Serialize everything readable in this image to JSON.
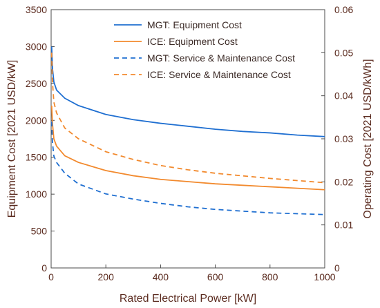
{
  "chart_data": {
    "type": "line",
    "xlabel": "Rated Electrical Power [kW]",
    "ylabel": "Equipment Cost [2021 USD/kW]",
    "y2label": "Operating Cost [2021 USD/kWh]",
    "xlim": [
      0,
      1000
    ],
    "ylim": [
      0,
      3500
    ],
    "y2lim": [
      0,
      0.06
    ],
    "x_ticks": [
      "0",
      "200",
      "400",
      "600",
      "800",
      "1000"
    ],
    "y_ticks": [
      "0",
      "500",
      "1000",
      "1500",
      "2000",
      "2500",
      "3000",
      "3500"
    ],
    "y2_ticks": [
      "0",
      "0.01",
      "0.02",
      "0.03",
      "0.04",
      "0.05",
      "0.06"
    ],
    "grid": false,
    "legend_position": "top-center",
    "x": [
      2,
      5,
      10,
      20,
      50,
      100,
      200,
      300,
      400,
      500,
      600,
      700,
      800,
      900,
      1000
    ],
    "series": [
      {
        "name": "MGT: Equipment Cost",
        "axis": "left",
        "style": "solid",
        "color": "#1f6fd1",
        "values": [
          3000,
          2700,
          2520,
          2410,
          2300,
          2200,
          2080,
          2010,
          1960,
          1920,
          1880,
          1850,
          1830,
          1800,
          1780
        ]
      },
      {
        "name": "ICE: Equipment Cost",
        "axis": "left",
        "style": "solid",
        "color": "#f28a2e",
        "values": [
          2200,
          1950,
          1750,
          1650,
          1520,
          1430,
          1320,
          1250,
          1200,
          1170,
          1140,
          1120,
          1100,
          1080,
          1060
        ]
      },
      {
        "name": "MGT: Service & Maintenance Cost",
        "axis": "right",
        "style": "dashed",
        "color": "#1f6fd1",
        "values": [
          0.034,
          0.029,
          0.026,
          0.0245,
          0.022,
          0.0195,
          0.0172,
          0.016,
          0.015,
          0.0142,
          0.0136,
          0.0132,
          0.0128,
          0.0126,
          0.0124
        ]
      },
      {
        "name": "ICE: Service & Maintenance Cost",
        "axis": "right",
        "style": "dashed",
        "color": "#f28a2e",
        "values": [
          0.05,
          0.043,
          0.0385,
          0.036,
          0.0325,
          0.03,
          0.027,
          0.0252,
          0.0238,
          0.0228,
          0.022,
          0.0214,
          0.0208,
          0.0203,
          0.0198
        ]
      }
    ]
  }
}
